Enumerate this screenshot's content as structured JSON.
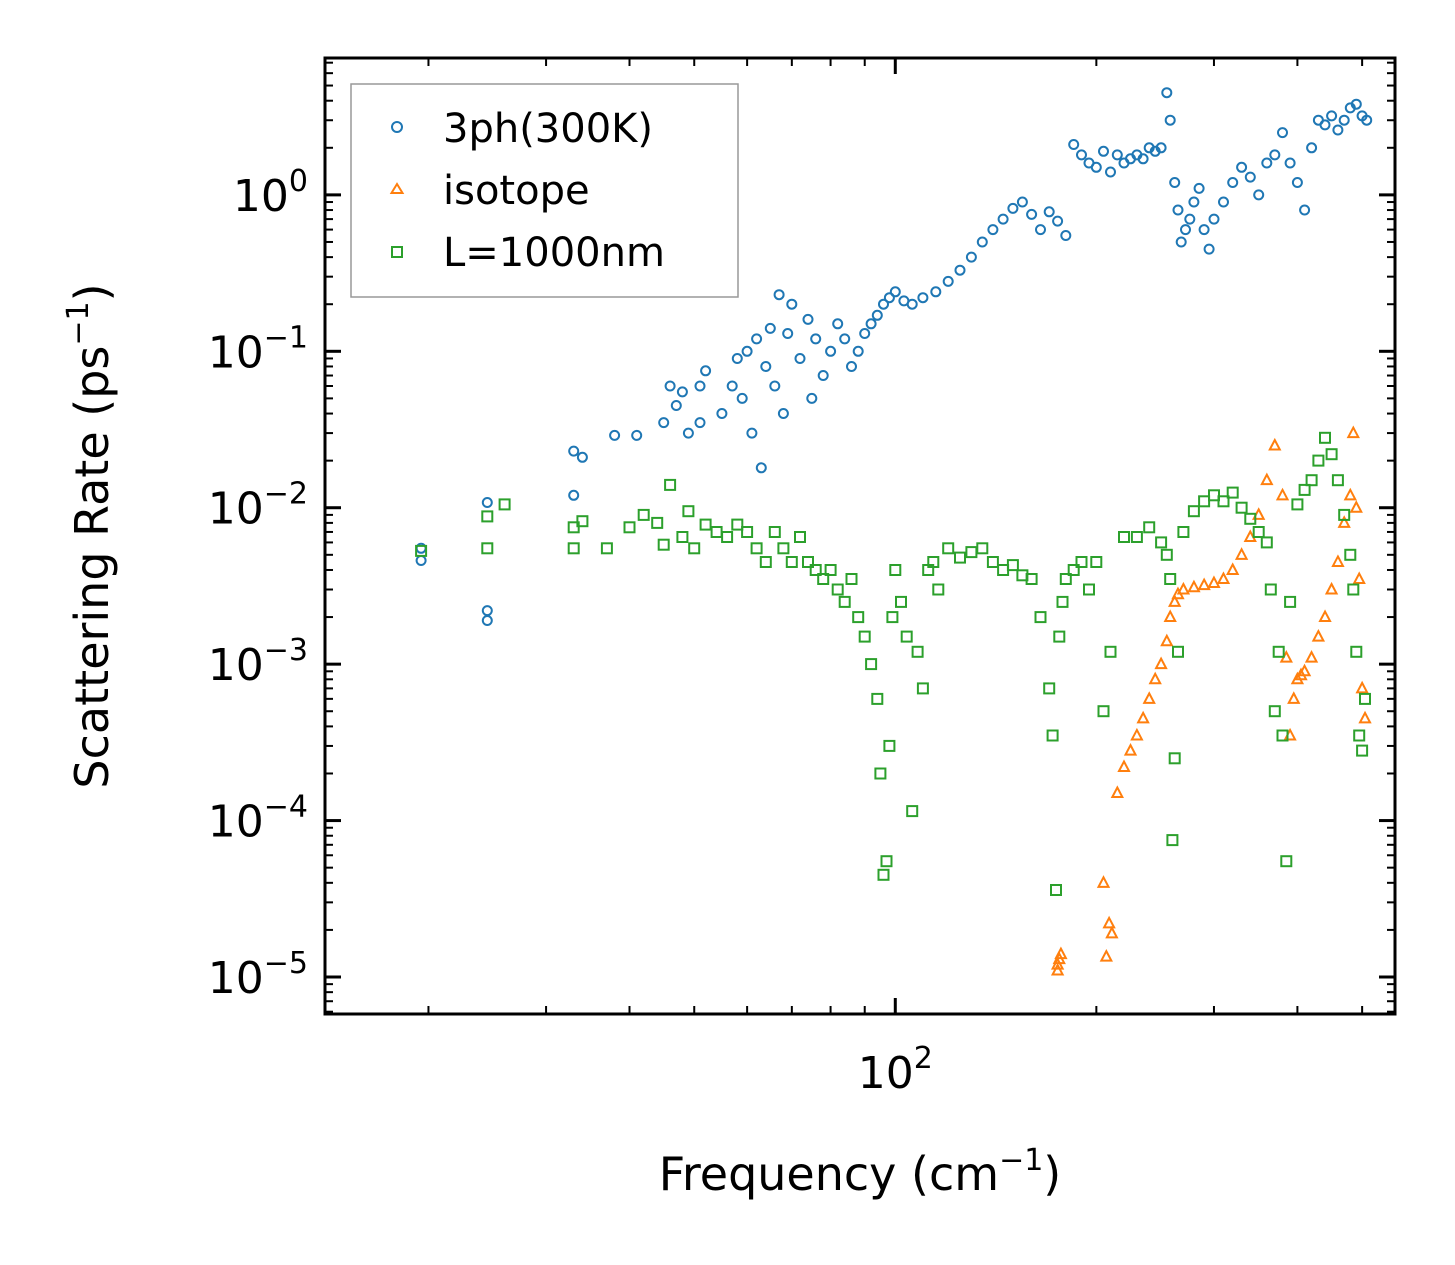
{
  "chart_data": {
    "type": "scatter",
    "xscale": "log",
    "yscale": "log",
    "xlim": [
      14,
      560
    ],
    "ylim": [
      5.8e-06,
      7.5
    ],
    "xlabel": {
      "text": "Frequency (cm",
      "sup": "−1",
      "tail": ")"
    },
    "ylabel": {
      "text": "Scattering Rate (ps",
      "sup": "−1",
      "tail": ")"
    },
    "x_tick_labels": [
      {
        "value": 100,
        "base": "10",
        "exp": "2"
      }
    ],
    "y_tick_labels": [
      {
        "value": 1,
        "base": "10",
        "exp": "0"
      },
      {
        "value": 0.1,
        "base": "10",
        "exp": "−1"
      },
      {
        "value": 0.01,
        "base": "10",
        "exp": "−2"
      },
      {
        "value": 0.001,
        "base": "10",
        "exp": "−3"
      },
      {
        "value": 0.0001,
        "base": "10",
        "exp": "−4"
      },
      {
        "value": 1e-05,
        "base": "10",
        "exp": "−5"
      }
    ],
    "legend_position": "top-left",
    "series": [
      {
        "name": "3ph(300K)",
        "marker": "circle",
        "color": "#1f77b4",
        "x": [
          19.5,
          19.5,
          24.5,
          24.5,
          24.5,
          33,
          33,
          34,
          38,
          41,
          45,
          46,
          47,
          48,
          49,
          51,
          51,
          52,
          55,
          57,
          58,
          59,
          60,
          61,
          62,
          63,
          64,
          65,
          66,
          67,
          68,
          69,
          70,
          72,
          74,
          75,
          76,
          78,
          80,
          82,
          84,
          86,
          88,
          90,
          92,
          94,
          96,
          98,
          100,
          103,
          106,
          110,
          115,
          120,
          125,
          130,
          135,
          140,
          145,
          150,
          155,
          160,
          165,
          170,
          175,
          180,
          185,
          190,
          195,
          200,
          205,
          210,
          215,
          220,
          225,
          230,
          235,
          240,
          245,
          250,
          255,
          258,
          262,
          265,
          268,
          272,
          276,
          280,
          285,
          290,
          295,
          300,
          310,
          320,
          330,
          340,
          350,
          360,
          370,
          380,
          390,
          400,
          410,
          420,
          430,
          440,
          450,
          460,
          470,
          480,
          490,
          500,
          508
        ],
        "y": [
          0.0055,
          0.0046,
          0.0108,
          0.0022,
          0.0019,
          0.023,
          0.012,
          0.021,
          0.029,
          0.029,
          0.035,
          0.06,
          0.045,
          0.055,
          0.03,
          0.06,
          0.035,
          0.075,
          0.04,
          0.06,
          0.09,
          0.05,
          0.1,
          0.03,
          0.12,
          0.018,
          0.08,
          0.14,
          0.06,
          0.23,
          0.04,
          0.13,
          0.2,
          0.09,
          0.16,
          0.05,
          0.12,
          0.07,
          0.1,
          0.15,
          0.12,
          0.08,
          0.1,
          0.13,
          0.15,
          0.17,
          0.2,
          0.22,
          0.24,
          0.21,
          0.2,
          0.22,
          0.24,
          0.28,
          0.33,
          0.4,
          0.5,
          0.6,
          0.7,
          0.82,
          0.9,
          0.75,
          0.6,
          0.78,
          0.68,
          0.55,
          2.1,
          1.8,
          1.6,
          1.5,
          1.9,
          1.4,
          1.8,
          1.6,
          1.7,
          1.8,
          1.7,
          2.0,
          1.9,
          2.0,
          4.5,
          3.0,
          1.2,
          0.8,
          0.5,
          0.6,
          0.7,
          0.9,
          1.1,
          0.6,
          0.45,
          0.7,
          0.9,
          1.2,
          1.5,
          1.3,
          1.0,
          1.6,
          1.8,
          2.5,
          1.6,
          1.2,
          0.8,
          2.0,
          3.0,
          2.8,
          3.2,
          2.6,
          3.0,
          3.6,
          3.8,
          3.2,
          3.0
        ]
      },
      {
        "name": "isotope",
        "marker": "triangle",
        "color": "#ff7f0e",
        "x": [
          175,
          175,
          176,
          177,
          205,
          207,
          209,
          211,
          215,
          220,
          225,
          230,
          235,
          240,
          245,
          250,
          255,
          258,
          262,
          265,
          270,
          280,
          290,
          300,
          310,
          320,
          330,
          340,
          350,
          360,
          370,
          380,
          385,
          390,
          395,
          400,
          405,
          410,
          420,
          430,
          440,
          450,
          460,
          470,
          480,
          485,
          490,
          495,
          500,
          505
        ],
        "y": [
          1.1e-05,
          1.2e-05,
          1.3e-05,
          1.4e-05,
          4e-05,
          1.35e-05,
          2.2e-05,
          1.9e-05,
          0.00015,
          0.00022,
          0.00028,
          0.00035,
          0.00045,
          0.0006,
          0.0008,
          0.001,
          0.0014,
          0.002,
          0.0025,
          0.0028,
          0.003,
          0.0031,
          0.0032,
          0.0033,
          0.0035,
          0.004,
          0.005,
          0.0065,
          0.009,
          0.015,
          0.025,
          0.012,
          0.0011,
          0.00035,
          0.0006,
          0.0008,
          0.00085,
          0.0009,
          0.0011,
          0.0015,
          0.002,
          0.003,
          0.0045,
          0.008,
          0.012,
          0.03,
          0.01,
          0.0035,
          0.0007,
          0.00045
        ]
      },
      {
        "name": "L=1000nm",
        "marker": "square",
        "color": "#2ca02c",
        "x": [
          19.5,
          24.5,
          24.5,
          26,
          33,
          33,
          34,
          37,
          40,
          42,
          44,
          45,
          46,
          48,
          49,
          50,
          52,
          54,
          56,
          58,
          60,
          62,
          64,
          66,
          68,
          70,
          72,
          74,
          76,
          78,
          80,
          82,
          84,
          86,
          88,
          90,
          92,
          94,
          95,
          96,
          97,
          98,
          99,
          100,
          102,
          104,
          106,
          108,
          110,
          112,
          114,
          116,
          120,
          125,
          130,
          135,
          140,
          145,
          150,
          155,
          160,
          165,
          170,
          172,
          174,
          176,
          178,
          180,
          185,
          190,
          195,
          200,
          205,
          210,
          220,
          230,
          240,
          250,
          255,
          258,
          260,
          262,
          265,
          270,
          280,
          290,
          300,
          310,
          320,
          330,
          340,
          350,
          360,
          365,
          370,
          375,
          380,
          385,
          390,
          400,
          410,
          420,
          430,
          440,
          450,
          460,
          470,
          480,
          485,
          490,
          495,
          500,
          505
        ],
        "y": [
          0.0053,
          0.0055,
          0.0088,
          0.0105,
          0.0055,
          0.0075,
          0.0082,
          0.0055,
          0.0075,
          0.009,
          0.008,
          0.0058,
          0.014,
          0.0065,
          0.0095,
          0.0055,
          0.0078,
          0.007,
          0.0065,
          0.0078,
          0.007,
          0.0055,
          0.0045,
          0.007,
          0.0055,
          0.0045,
          0.0065,
          0.0045,
          0.004,
          0.0035,
          0.004,
          0.003,
          0.0025,
          0.0035,
          0.002,
          0.0015,
          0.001,
          0.0006,
          0.0002,
          4.5e-05,
          5.5e-05,
          0.0003,
          0.002,
          0.004,
          0.0025,
          0.0015,
          0.000115,
          0.0012,
          0.0007,
          0.004,
          0.0045,
          0.003,
          0.0055,
          0.0048,
          0.0052,
          0.0055,
          0.0045,
          0.004,
          0.0043,
          0.0037,
          0.0035,
          0.002,
          0.0007,
          0.00035,
          3.6e-05,
          0.0015,
          0.0025,
          0.0035,
          0.004,
          0.0045,
          0.003,
          0.0045,
          0.0005,
          0.0012,
          0.0065,
          0.0065,
          0.0075,
          0.006,
          0.005,
          0.0035,
          7.5e-05,
          0.00025,
          0.0012,
          0.007,
          0.0095,
          0.011,
          0.012,
          0.011,
          0.0125,
          0.01,
          0.0085,
          0.007,
          0.006,
          0.003,
          0.0005,
          0.0012,
          0.00035,
          5.5e-05,
          0.0025,
          0.0105,
          0.013,
          0.015,
          0.02,
          0.028,
          0.022,
          0.015,
          0.009,
          0.005,
          0.003,
          0.0012,
          0.00035,
          0.00028,
          0.0006
        ]
      }
    ]
  }
}
